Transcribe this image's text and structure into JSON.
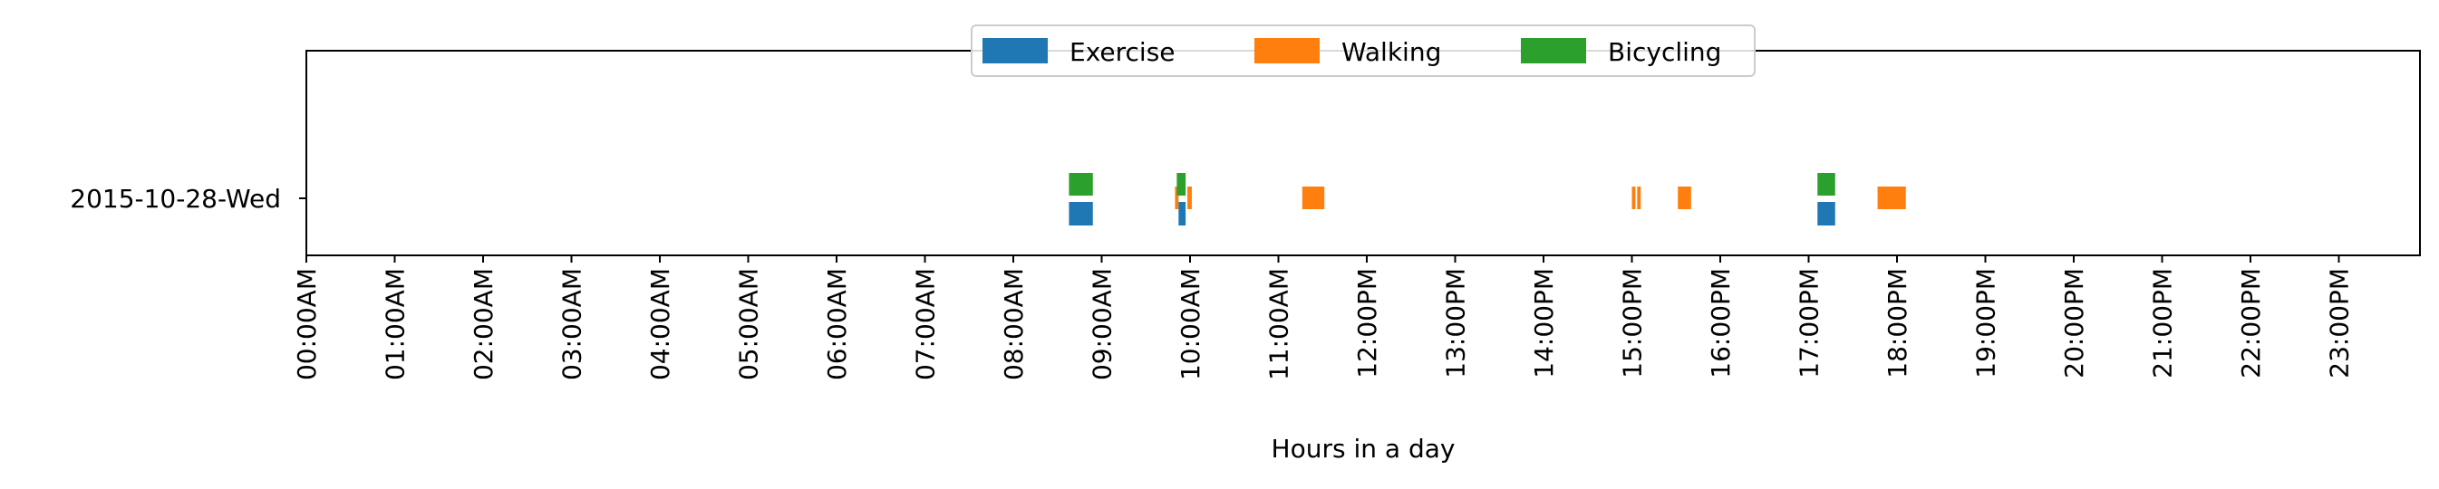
{
  "chart_data": {
    "type": "timeline",
    "title": "",
    "xlabel": "Hours in a day",
    "ylabel": "",
    "xlim": [
      0,
      24
    ],
    "x_ticks": [
      "00:00AM",
      "01:00AM",
      "02:00AM",
      "03:00AM",
      "04:00AM",
      "05:00AM",
      "06:00AM",
      "07:00AM",
      "08:00AM",
      "09:00AM",
      "10:00AM",
      "11:00AM",
      "12:00PM",
      "13:00PM",
      "14:00PM",
      "15:00PM",
      "16:00PM",
      "17:00PM",
      "18:00PM",
      "19:00PM",
      "20:00PM",
      "21:00PM",
      "22:00PM",
      "23:00PM"
    ],
    "categories": [
      "2015-10-28-Wed"
    ],
    "legend_position": "top-center",
    "grid": false,
    "series": [
      {
        "name": "Exercise",
        "color": "#1f77b4",
        "lane": "bottom",
        "intervals": [
          [
            8.63,
            8.9
          ],
          [
            9.87,
            9.95
          ],
          [
            17.1,
            17.3
          ]
        ]
      },
      {
        "name": "Walking",
        "color": "#ff7f0e",
        "lane": "middle",
        "intervals": [
          [
            9.83,
            9.87
          ],
          [
            9.97,
            10.02
          ],
          [
            11.27,
            11.52
          ],
          [
            15.0,
            15.04
          ],
          [
            15.06,
            15.1
          ],
          [
            15.52,
            15.67
          ],
          [
            17.78,
            18.1
          ]
        ]
      },
      {
        "name": "Bicycling",
        "color": "#2ca02c",
        "lane": "top",
        "intervals": [
          [
            8.63,
            8.9
          ],
          [
            9.85,
            9.95
          ],
          [
            17.1,
            17.3
          ]
        ]
      }
    ]
  }
}
